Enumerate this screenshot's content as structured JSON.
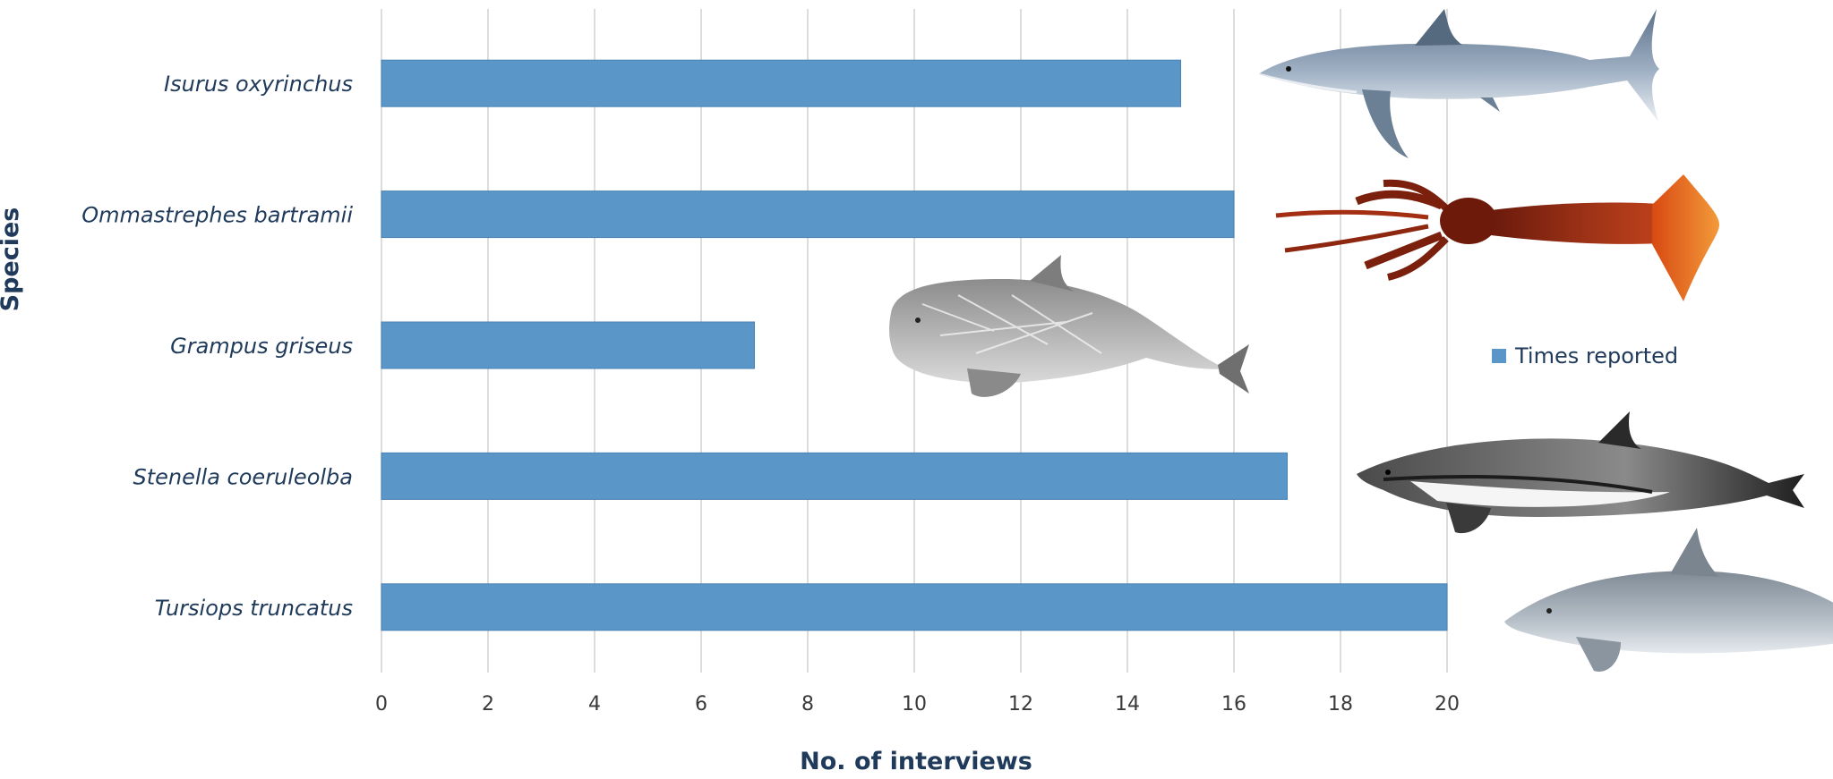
{
  "chart_data": {
    "type": "bar",
    "orientation": "horizontal",
    "categories": [
      "Isurus oxyrinchus",
      "Ommastrephes bartramii",
      "Grampus griseus",
      "Stenella coeruleolba",
      "Tursiops truncatus"
    ],
    "series": [
      {
        "name": "Times reported",
        "values": [
          15,
          16,
          7,
          17,
          20
        ],
        "color": "#5b96c9"
      }
    ],
    "xlabel": "No. of interviews",
    "ylabel": "Species",
    "xlim": [
      0,
      20
    ],
    "xticks": [
      "0",
      "2",
      "4",
      "6",
      "8",
      "10",
      "12",
      "14",
      "16",
      "18",
      "20"
    ],
    "grid": true,
    "legend_position": "right",
    "illustrations": [
      "shortfin-mako-shark",
      "flying-squid",
      "rissos-dolphin",
      "striped-dolphin",
      "bottlenose-dolphin"
    ]
  }
}
